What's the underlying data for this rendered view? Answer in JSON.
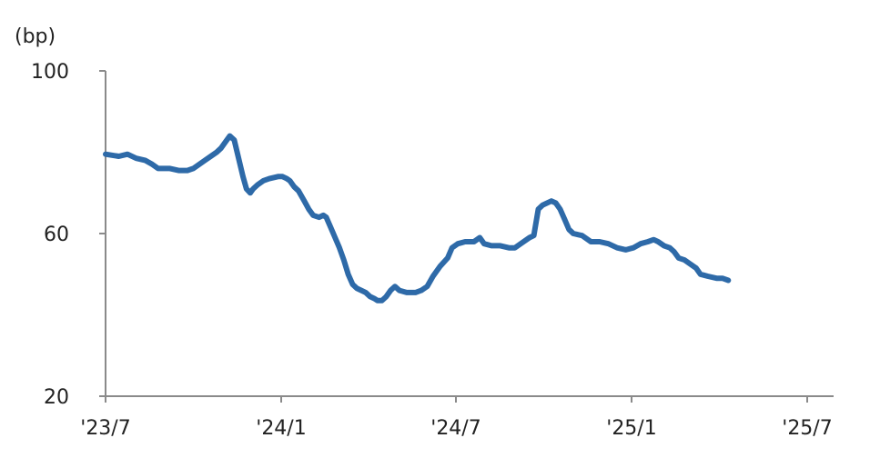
{
  "chart_data": {
    "type": "line",
    "title": "",
    "xlabel": "",
    "ylabel": "(bp)",
    "ylim": [
      20,
      100
    ],
    "y_ticks": [
      100,
      60,
      20
    ],
    "y_tick_labels": [
      "100",
      "60",
      "20"
    ],
    "x_tick_labels": [
      "'23/7",
      "'24/1",
      "'24/7",
      "'25/1",
      "'25/7"
    ],
    "grid": false,
    "legend": "none",
    "colors": {
      "line": "#2e6aa8",
      "axis": "#8a8a8a",
      "text": "#222222"
    },
    "series": [
      {
        "values": [
          [
            0.0,
            79.5
          ],
          [
            0.45,
            79
          ],
          [
            0.75,
            79.5
          ],
          [
            1.05,
            78.5
          ],
          [
            1.35,
            78
          ],
          [
            1.6,
            77
          ],
          [
            1.8,
            76
          ],
          [
            2.2,
            76
          ],
          [
            2.5,
            75.5
          ],
          [
            2.8,
            75.5
          ],
          [
            3.0,
            76
          ],
          [
            3.2,
            77
          ],
          [
            3.4,
            78
          ],
          [
            3.6,
            79
          ],
          [
            3.8,
            80
          ],
          [
            3.95,
            81
          ],
          [
            4.1,
            82.5
          ],
          [
            4.25,
            84
          ],
          [
            4.4,
            83
          ],
          [
            4.5,
            80
          ],
          [
            4.6,
            77
          ],
          [
            4.7,
            74
          ],
          [
            4.82,
            71
          ],
          [
            4.95,
            70
          ],
          [
            5.05,
            71
          ],
          [
            5.2,
            72
          ],
          [
            5.4,
            73
          ],
          [
            5.6,
            73.5
          ],
          [
            5.9,
            74
          ],
          [
            6.05,
            74
          ],
          [
            6.2,
            73.5
          ],
          [
            6.3,
            73
          ],
          [
            6.45,
            71.5
          ],
          [
            6.6,
            70.5
          ],
          [
            6.8,
            68
          ],
          [
            6.95,
            66
          ],
          [
            7.1,
            64.5
          ],
          [
            7.3,
            64
          ],
          [
            7.45,
            64.5
          ],
          [
            7.55,
            64
          ],
          [
            7.7,
            61.5
          ],
          [
            7.85,
            59
          ],
          [
            8.0,
            56.5
          ],
          [
            8.15,
            53.5
          ],
          [
            8.3,
            50
          ],
          [
            8.45,
            47.5
          ],
          [
            8.6,
            46.5
          ],
          [
            8.75,
            46
          ],
          [
            8.9,
            45.5
          ],
          [
            9.05,
            44.5
          ],
          [
            9.2,
            44
          ],
          [
            9.3,
            43.5
          ],
          [
            9.45,
            43.5
          ],
          [
            9.6,
            44.5
          ],
          [
            9.75,
            46
          ],
          [
            9.9,
            47
          ],
          [
            10.05,
            46
          ],
          [
            10.3,
            45.5
          ],
          [
            10.6,
            45.5
          ],
          [
            10.8,
            46
          ],
          [
            11.0,
            47
          ],
          [
            11.2,
            49.5
          ],
          [
            11.45,
            52
          ],
          [
            11.7,
            54
          ],
          [
            11.85,
            56.5
          ],
          [
            12.05,
            57.5
          ],
          [
            12.3,
            58
          ],
          [
            12.6,
            58
          ],
          [
            12.8,
            59
          ],
          [
            12.95,
            57.5
          ],
          [
            13.2,
            57
          ],
          [
            13.5,
            57
          ],
          [
            13.8,
            56.5
          ],
          [
            14.0,
            56.5
          ],
          [
            14.2,
            57.5
          ],
          [
            14.5,
            59
          ],
          [
            14.65,
            59.5
          ],
          [
            14.8,
            66
          ],
          [
            14.95,
            67
          ],
          [
            15.1,
            67.5
          ],
          [
            15.25,
            68
          ],
          [
            15.4,
            67.5
          ],
          [
            15.55,
            66
          ],
          [
            15.7,
            63.5
          ],
          [
            15.85,
            61
          ],
          [
            16.0,
            60
          ],
          [
            16.3,
            59.5
          ],
          [
            16.6,
            58
          ],
          [
            16.9,
            58
          ],
          [
            17.2,
            57.5
          ],
          [
            17.5,
            56.5
          ],
          [
            17.8,
            56
          ],
          [
            18.05,
            56.5
          ],
          [
            18.3,
            57.5
          ],
          [
            18.55,
            58
          ],
          [
            18.75,
            58.5
          ],
          [
            18.9,
            58
          ],
          [
            19.1,
            57
          ],
          [
            19.3,
            56.5
          ],
          [
            19.45,
            55.5
          ],
          [
            19.6,
            54
          ],
          [
            19.8,
            53.5
          ],
          [
            20.0,
            52.5
          ],
          [
            20.2,
            51.5
          ],
          [
            20.35,
            50
          ],
          [
            20.6,
            49.5
          ],
          [
            20.9,
            49
          ],
          [
            21.1,
            49
          ],
          [
            21.3,
            48.5
          ]
        ]
      }
    ]
  }
}
